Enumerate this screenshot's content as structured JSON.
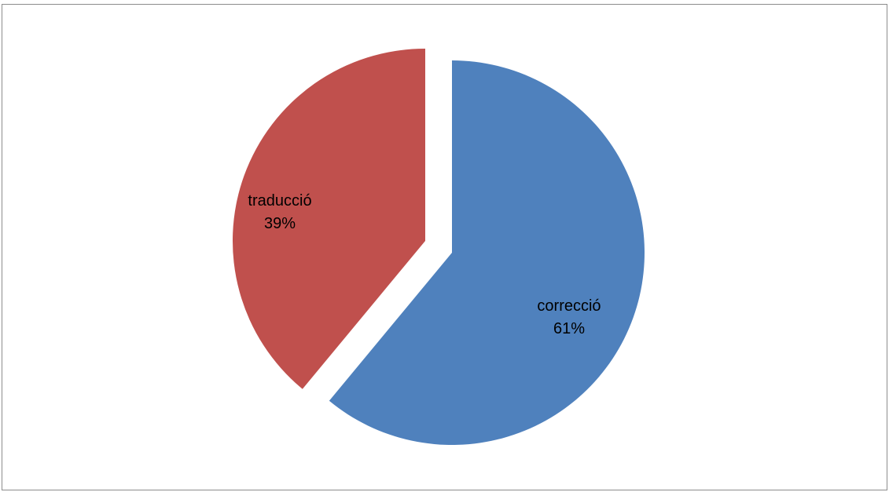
{
  "chart_data": {
    "type": "pie",
    "title": "",
    "exploded": true,
    "start": "12 o'clock, clockwise",
    "slices": [
      {
        "label": "correcció",
        "value": 61,
        "percent_label": "61%",
        "color": "#4F81BD"
      },
      {
        "label": "traducció",
        "value": 39,
        "percent_label": "39%",
        "color": "#C0504D"
      }
    ]
  }
}
